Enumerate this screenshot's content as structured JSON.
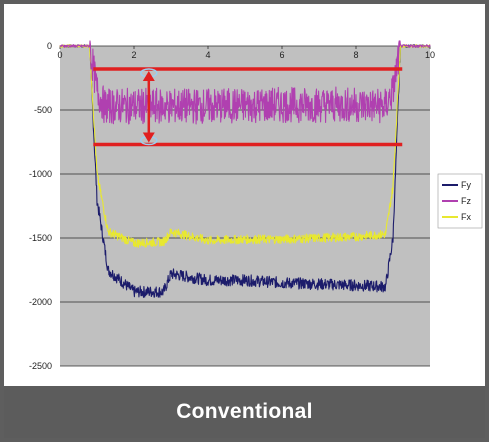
{
  "caption": "Conventional",
  "chart_data": {
    "type": "line",
    "xlim": [
      0,
      10
    ],
    "ylim": [
      -2500,
      0
    ],
    "x_ticks": [
      "0",
      "2",
      "4",
      "6",
      "8",
      "10"
    ],
    "y_ticks": [
      "0",
      "-500",
      "-1000",
      "-1500",
      "-2000",
      "-2500"
    ],
    "grid": true,
    "legend_position": "right",
    "plot_background": "#c0c0c0",
    "series": [
      {
        "name": "Fy",
        "color": "#1c1c6b",
        "x": [
          0,
          0.8,
          1.0,
          1.3,
          2.0,
          2.8,
          3.0,
          4.0,
          5.0,
          6.0,
          7.0,
          8.0,
          8.8,
          9.0,
          9.2,
          10
        ],
        "y": [
          0,
          0,
          -1200,
          -1750,
          -1920,
          -1920,
          -1780,
          -1830,
          -1830,
          -1850,
          -1860,
          -1870,
          -1880,
          -1500,
          0,
          0
        ],
        "noise": 45
      },
      {
        "name": "Fz",
        "color": "#b040b0",
        "x": [
          0,
          0.8,
          1.0,
          1.2,
          2.0,
          4.0,
          6.0,
          8.0,
          8.8,
          9.0,
          9.2,
          10
        ],
        "y": [
          0,
          0,
          -350,
          -470,
          -470,
          -470,
          -460,
          -460,
          -470,
          -350,
          0,
          0
        ],
        "noise": 140
      },
      {
        "name": "Fx",
        "color": "#e8e830",
        "x": [
          0,
          0.8,
          1.0,
          1.3,
          2.0,
          2.8,
          3.0,
          4.0,
          5.0,
          6.0,
          7.0,
          8.0,
          8.8,
          9.0,
          9.2,
          10
        ],
        "y": [
          0,
          0,
          -1000,
          -1450,
          -1540,
          -1530,
          -1450,
          -1520,
          -1510,
          -1510,
          -1500,
          -1490,
          -1470,
          -1100,
          0,
          0
        ],
        "noise": 35
      }
    ],
    "annotations": {
      "upper_line_y": -180,
      "lower_line_y": -770,
      "line_color": "#e02020",
      "arrow_x": 2.4
    }
  }
}
